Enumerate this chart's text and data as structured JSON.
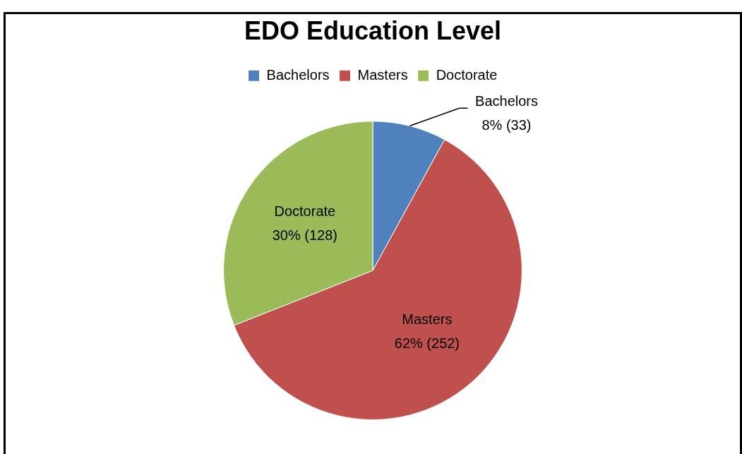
{
  "chart_data": {
    "type": "pie",
    "title": "EDO Education Level",
    "categories": [
      "Bachelors",
      "Masters",
      "Doctorate"
    ],
    "values": [
      33,
      252,
      128
    ],
    "colors": [
      "#4f81bd",
      "#c0504d",
      "#9bbb59"
    ],
    "value_labels": [
      "8% (33)",
      "62% (252)",
      "30% (128)"
    ],
    "legend": "top"
  }
}
